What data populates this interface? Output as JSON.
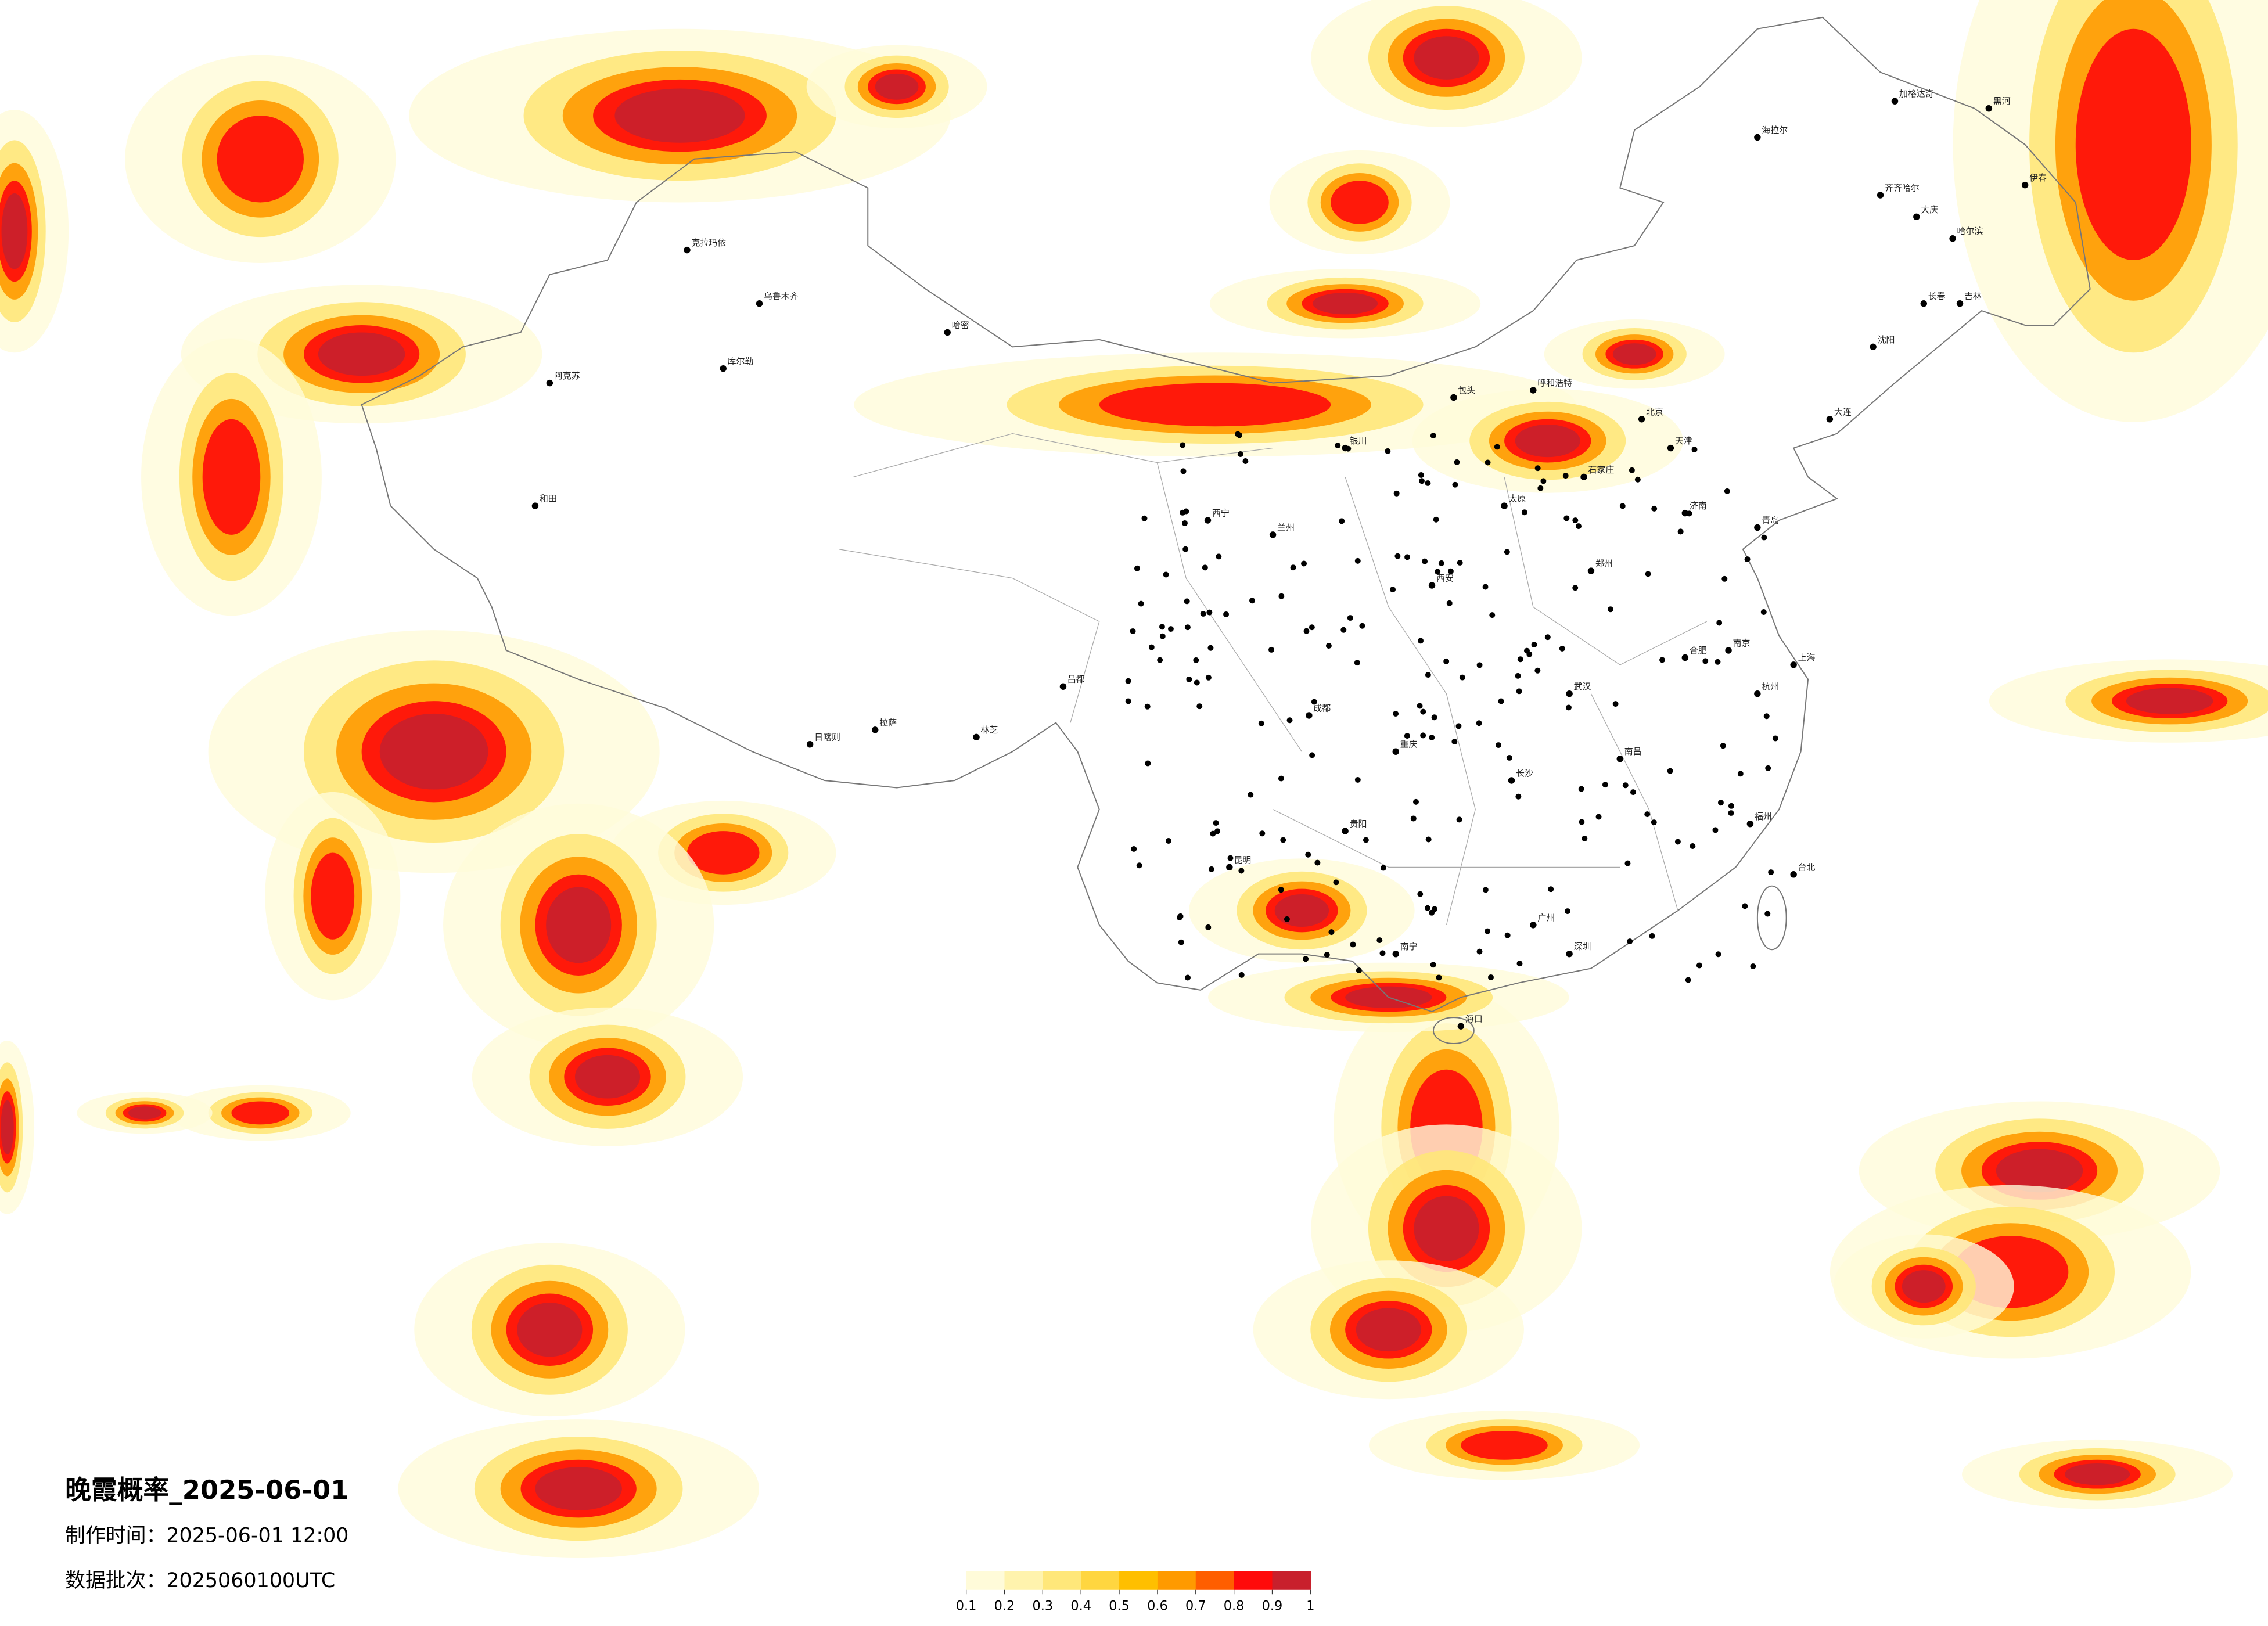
{
  "header": {
    "title": "晚霞概率_2025-06-01",
    "made_time": "制作时间：2025-06-01 12:00",
    "batch": "数据批次：2025060100UTC"
  },
  "colorbar": {
    "ticks": [
      0.1,
      0.2,
      0.3,
      0.4,
      0.5,
      0.6,
      0.7,
      0.8,
      0.9,
      1
    ],
    "colors": [
      "#fffbd9",
      "#fff3ad",
      "#ffe77a",
      "#ffd640",
      "#ffbf00",
      "#ff9a00",
      "#ff5e00",
      "#ff0a0a",
      "#c8202c"
    ]
  },
  "cities": [
    "海拉尔",
    "加格达奇",
    "黑河",
    "齐齐哈尔",
    "大庆",
    "哈尔滨",
    "伊春",
    "长春",
    "吉林",
    "沈阳",
    "大连",
    "北京",
    "天津",
    "石家庄",
    "太原",
    "呼和浩特",
    "包头",
    "银川",
    "兰州",
    "西宁",
    "乌鲁木齐",
    "克拉玛依",
    "哈密",
    "库尔勒",
    "阿克苏",
    "和田",
    "拉萨",
    "日喀则",
    "林芝",
    "昌都",
    "成都",
    "重庆",
    "贵阳",
    "昆明",
    "南宁",
    "广州",
    "深圳",
    "长沙",
    "武汉",
    "郑州",
    "西安",
    "济南",
    "南京",
    "上海",
    "杭州",
    "福州",
    "南昌",
    "合肥",
    "海口",
    "台北",
    "青岛"
  ]
}
